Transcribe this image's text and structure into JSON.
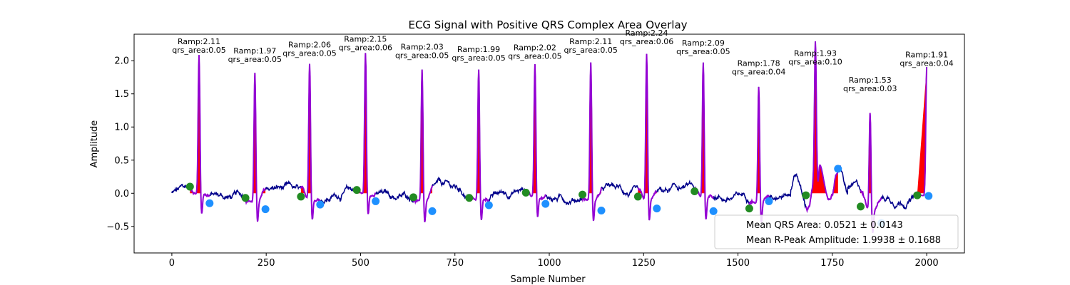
{
  "chart_data": {
    "type": "line",
    "title": "ECG Signal with Positive QRS Complex Area Overlay",
    "xlabel": "Sample Number",
    "ylabel": "Amplitude",
    "xlim": [
      -100,
      2100
    ],
    "ylim": [
      -0.9,
      2.4
    ],
    "xticks": [
      0,
      250,
      500,
      750,
      1000,
      1250,
      1500,
      1750,
      2000
    ],
    "yticks": [
      -0.5,
      0.0,
      0.5,
      1.0,
      1.5,
      2.0
    ],
    "xtick_labels": [
      "0",
      "250",
      "500",
      "750",
      "1000",
      "1250",
      "1500",
      "1750",
      "2000"
    ],
    "ytick_labels": [
      "−0.5",
      "0.0",
      "0.5",
      "1.0",
      "1.5",
      "2.0"
    ],
    "grid": false,
    "colors": {
      "signal": "#00008b",
      "qrs_segment": "#9400d3",
      "qrs_area": "#ff0000",
      "q_point": "#228b22",
      "s_point": "#1e90ff"
    },
    "beats": [
      {
        "r": 72,
        "amp": 2.11,
        "q": 48,
        "qv": 0.1,
        "s": 100,
        "sv": -0.15,
        "label_ramp": "Ramp:2.11",
        "label_area": "qrs_area:0.05"
      },
      {
        "r": 220,
        "amp": 1.97,
        "q": 195,
        "qv": -0.07,
        "s": 248,
        "sv": -0.24,
        "label_ramp": "Ramp:1.97",
        "label_area": "qrs_area:0.05"
      },
      {
        "r": 365,
        "amp": 2.06,
        "q": 342,
        "qv": -0.05,
        "s": 393,
        "sv": -0.17,
        "label_ramp": "Ramp:2.06",
        "label_area": "qrs_area:0.05"
      },
      {
        "r": 513,
        "amp": 2.15,
        "q": 490,
        "qv": 0.05,
        "s": 540,
        "sv": -0.12,
        "label_ramp": "Ramp:2.15",
        "label_area": "qrs_area:0.06"
      },
      {
        "r": 663,
        "amp": 2.03,
        "q": 640,
        "qv": -0.06,
        "s": 690,
        "sv": -0.27,
        "label_ramp": "Ramp:2.03",
        "label_area": "qrs_area:0.05"
      },
      {
        "r": 813,
        "amp": 1.99,
        "q": 788,
        "qv": -0.07,
        "s": 840,
        "sv": -0.18,
        "label_ramp": "Ramp:1.99",
        "label_area": "qrs_area:0.05"
      },
      {
        "r": 962,
        "amp": 2.02,
        "q": 938,
        "qv": 0.01,
        "s": 990,
        "sv": -0.16,
        "label_ramp": "Ramp:2.02",
        "label_area": "qrs_area:0.05"
      },
      {
        "r": 1110,
        "amp": 2.11,
        "q": 1088,
        "qv": -0.02,
        "s": 1138,
        "sv": -0.26,
        "label_ramp": "Ramp:2.11",
        "label_area": "qrs_area:0.05"
      },
      {
        "r": 1258,
        "amp": 2.24,
        "q": 1235,
        "qv": -0.05,
        "s": 1285,
        "sv": -0.23,
        "label_ramp": "Ramp:2.24",
        "label_area": "qrs_area:0.06"
      },
      {
        "r": 1408,
        "amp": 2.09,
        "q": 1385,
        "qv": 0.03,
        "s": 1435,
        "sv": -0.27,
        "label_ramp": "Ramp:2.09",
        "label_area": "qrs_area:0.05"
      },
      {
        "r": 1555,
        "amp": 1.78,
        "q": 1530,
        "qv": -0.23,
        "s": 1582,
        "sv": -0.12,
        "label_ramp": "Ramp:1.78",
        "label_area": "qrs_area:0.04"
      },
      {
        "r": 1705,
        "amp": 1.93,
        "q": 1680,
        "qv": -0.03,
        "s": 1765,
        "sv": 0.37,
        "label_ramp": "Ramp:1.93",
        "label_area": "qrs_area:0.10"
      },
      {
        "r": 1850,
        "amp": 1.53,
        "q": 1825,
        "qv": -0.2,
        "s": 1880,
        "sv": -0.45,
        "label_ramp": "Ramp:1.53",
        "label_area": "qrs_area:0.03"
      },
      {
        "r": 2000,
        "amp": 1.91,
        "q": 1975,
        "qv": -0.03,
        "s": 2005,
        "sv": -0.04,
        "label_ramp": "Ramp:1.91",
        "label_area": "qrs_area:0.04"
      }
    ],
    "legend": {
      "placement": "lower-right",
      "entries": [
        "Mean QRS Area: 0.0521 ± 0.0143",
        "Mean R-Peak Amplitude: 1.9938 ± 0.1688"
      ]
    }
  }
}
